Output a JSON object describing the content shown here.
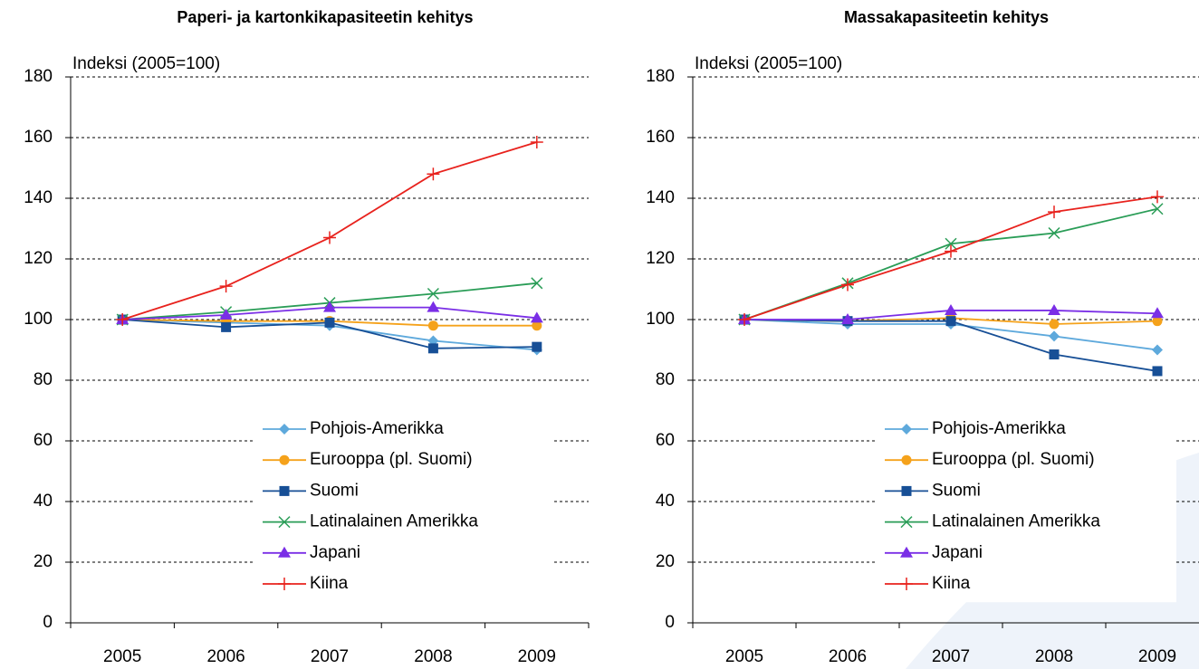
{
  "chart_data": [
    {
      "type": "line",
      "title": "Paperi- ja kartonkikapasiteetin kehitys",
      "y_label": "Indeksi (2005=100)",
      "categories": [
        "2005",
        "2006",
        "2007",
        "2008",
        "2009"
      ],
      "ylim": [
        0,
        180
      ],
      "yticks": [
        0,
        20,
        40,
        60,
        80,
        100,
        120,
        140,
        160,
        180
      ],
      "grid": true,
      "legend": "lower right",
      "series": [
        {
          "name": "Pohjois-Amerikka",
          "color": "#5ea9dc",
          "marker": "diamond",
          "values": [
            100,
            99,
            98,
            93,
            90
          ]
        },
        {
          "name": "Eurooppa (pl. Suomi)",
          "color": "#f5a21b",
          "marker": "circle",
          "values": [
            100,
            99.5,
            99.5,
            98,
            98
          ]
        },
        {
          "name": "Suomi",
          "color": "#174f96",
          "marker": "square",
          "values": [
            100,
            97.5,
            99,
            90.5,
            91
          ]
        },
        {
          "name": "Latinalainen Amerikka",
          "color": "#2a9d57",
          "marker": "x",
          "values": [
            100,
            102.5,
            105.5,
            108.5,
            112
          ]
        },
        {
          "name": "Japani",
          "color": "#7a2ee6",
          "marker": "triangle",
          "values": [
            100,
            101.5,
            104,
            104,
            100.5
          ]
        },
        {
          "name": "Kiina",
          "color": "#e8221d",
          "marker": "plus",
          "values": [
            100,
            111,
            127,
            148,
            158.5
          ]
        }
      ]
    },
    {
      "type": "line",
      "title": "Massakapasiteetin kehitys",
      "y_label": "Indeksi (2005=100)",
      "categories": [
        "2005",
        "2006",
        "2007",
        "2008",
        "2009"
      ],
      "ylim": [
        0,
        180
      ],
      "yticks": [
        0,
        20,
        40,
        60,
        80,
        100,
        120,
        140,
        160,
        180
      ],
      "grid": true,
      "legend": "lower right",
      "series": [
        {
          "name": "Pohjois-Amerikka",
          "color": "#5ea9dc",
          "marker": "diamond",
          "values": [
            100,
            98.5,
            98.5,
            94.5,
            90
          ]
        },
        {
          "name": "Eurooppa (pl. Suomi)",
          "color": "#f5a21b",
          "marker": "circle",
          "values": [
            100,
            99.5,
            100.5,
            98.5,
            99.5
          ]
        },
        {
          "name": "Suomi",
          "color": "#174f96",
          "marker": "square",
          "values": [
            100,
            99.5,
            99.5,
            88.5,
            83
          ]
        },
        {
          "name": "Latinalainen Amerikka",
          "color": "#2a9d57",
          "marker": "x",
          "values": [
            100,
            112,
            125,
            128.5,
            136.5
          ]
        },
        {
          "name": "Japani",
          "color": "#7a2ee6",
          "marker": "triangle",
          "values": [
            100,
            100,
            103,
            103,
            102
          ]
        },
        {
          "name": "Kiina",
          "color": "#e8221d",
          "marker": "plus",
          "values": [
            100,
            111.5,
            122.5,
            135.5,
            140.5
          ]
        }
      ]
    }
  ]
}
